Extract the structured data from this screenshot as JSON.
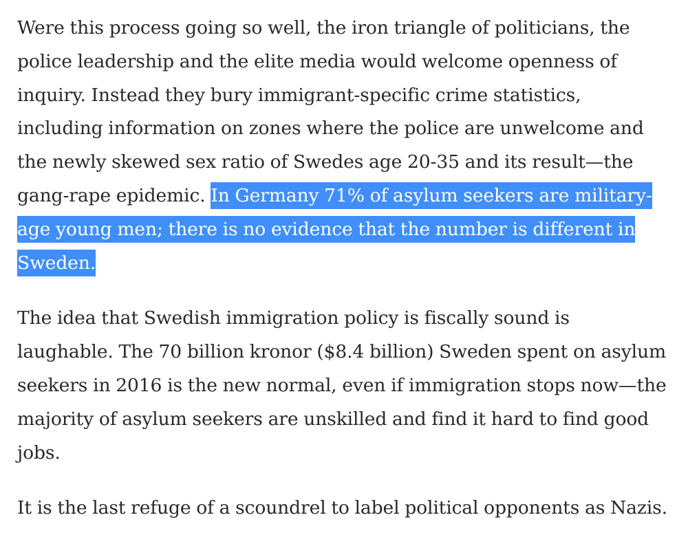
{
  "article": {
    "paragraphs": [
      {
        "text": "Were this process going so well, the iron triangle of politicians, the police leadership and the elite media would welcome openness of inquiry. Instead they bury immigrant-specific crime statistics, including information on zones where the police are unwelcome and the newly skewed sex ratio of Swedes age 20-35 and its result—the gang-rape epidemic. ",
        "highlighted_text": "In Germany 71% of asylum seekers are military-age young men; there is no evidence that the number is different in Sweden."
      },
      {
        "text": "The idea that Swedish immigration policy is fiscally sound is laughable. The 70 billion kronor ($8.4 billion) Sweden spent on asylum seekers in 2016 is the new normal, even if immigration stops now—the majority of asylum seekers are unskilled and find it hard to find good jobs."
      },
      {
        "text": "It is the last refuge of a scoundrel to label political opponents as Nazis."
      }
    ],
    "selection_color": "#3f8ef9",
    "text_color": "#292929"
  }
}
